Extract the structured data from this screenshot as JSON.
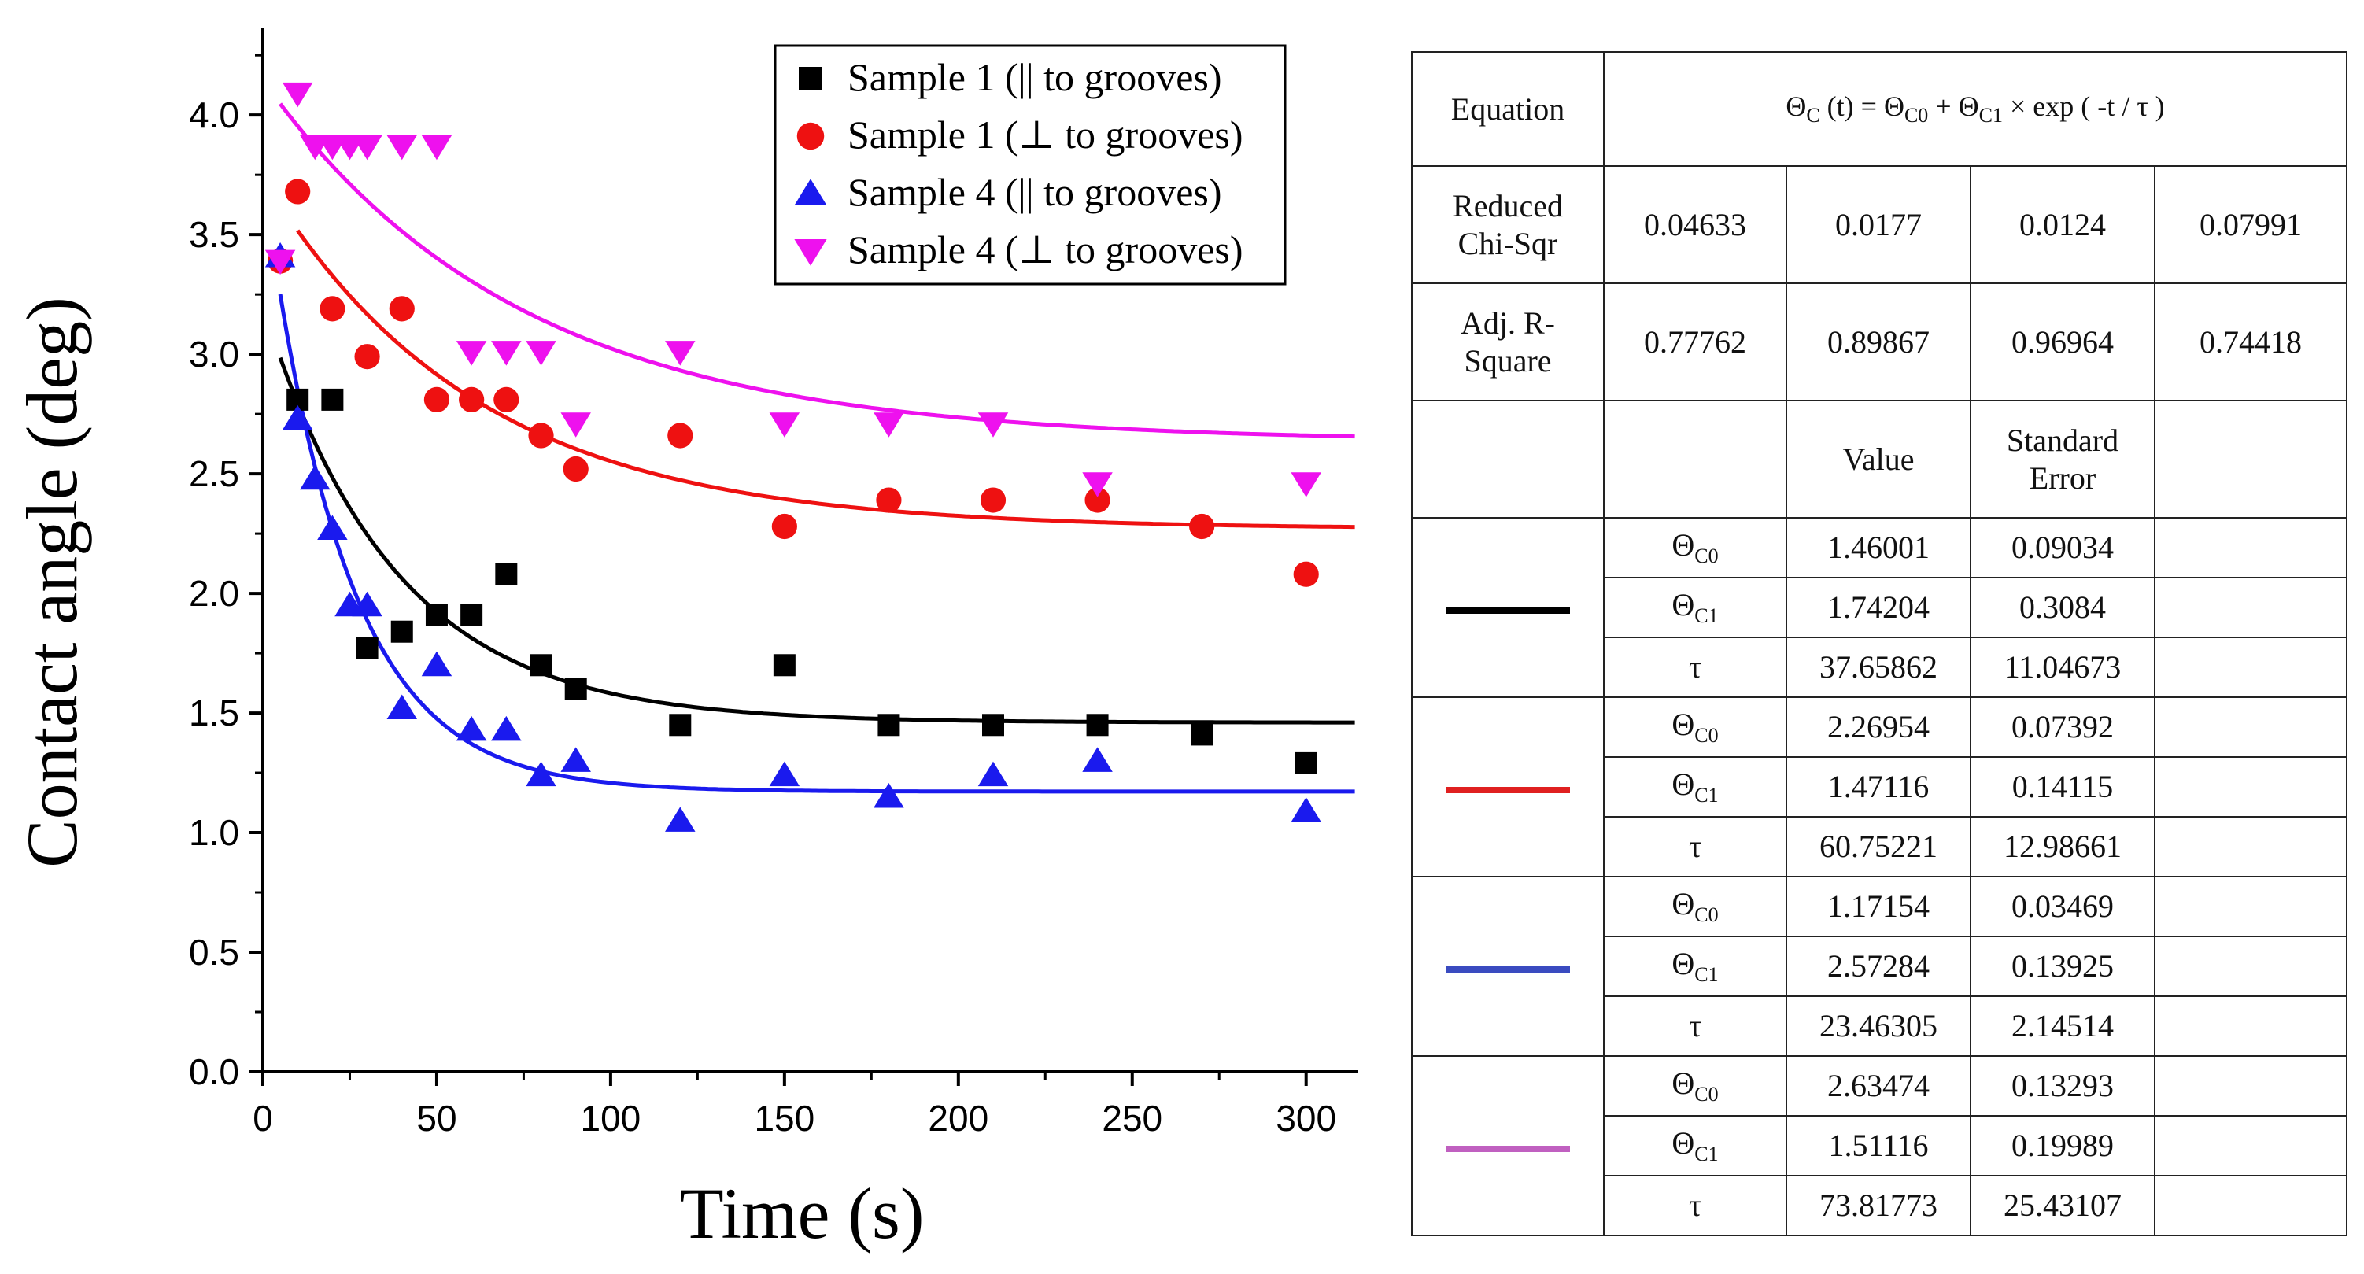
{
  "chart_data": {
    "type": "scatter",
    "xlabel": "Time (s)",
    "ylabel": "Contact angle (deg)",
    "xlim": [
      0,
      315
    ],
    "ylim": [
      0,
      4.3
    ],
    "xticks": [
      0,
      50,
      100,
      150,
      200,
      250,
      300
    ],
    "xtick_labels": [
      "0",
      "50",
      "100",
      "150",
      "200",
      "250",
      "300"
    ],
    "yticks": [
      0,
      0.5,
      1.0,
      1.5,
      2.0,
      2.5,
      3.0,
      3.5,
      4.0
    ],
    "ytick_labels": [
      "0.0",
      "0.5",
      "1.0",
      "1.5",
      "2.0",
      "2.5",
      "3.0",
      "3.5",
      "4.0"
    ],
    "legend_position": "top-right",
    "series": [
      {
        "name": "Sample 1 (|| to grooves)",
        "marker": "square",
        "color": "#000000",
        "x": [
          10,
          20,
          30,
          40,
          50,
          60,
          70,
          80,
          90,
          120,
          150,
          180,
          210,
          240,
          270,
          300
        ],
        "y": [
          2.81,
          2.81,
          1.77,
          1.84,
          1.91,
          1.91,
          2.08,
          1.7,
          1.6,
          1.45,
          1.7,
          1.45,
          1.45,
          1.45,
          1.41,
          1.29
        ],
        "fit": {
          "c0": 1.46001,
          "c1": 1.74204,
          "tau": 37.65862,
          "t0": 5
        }
      },
      {
        "name": "Sample 1 (⊥ to grooves)",
        "marker": "circle",
        "color": "#ee1111",
        "x": [
          5,
          10,
          20,
          30,
          40,
          50,
          60,
          70,
          80,
          90,
          120,
          150,
          180,
          210,
          240,
          270,
          300
        ],
        "y": [
          3.39,
          3.68,
          3.19,
          2.99,
          3.19,
          2.81,
          2.81,
          2.81,
          2.66,
          2.52,
          2.66,
          2.28,
          2.39,
          2.39,
          2.39,
          2.28,
          2.08
        ],
        "fit": {
          "c0": 2.26954,
          "c1": 1.47116,
          "tau": 60.75221,
          "t0": 10
        }
      },
      {
        "name": "Sample 4 (|| to grooves)",
        "marker": "triangle-up",
        "color": "#1a1aee",
        "x": [
          5,
          10,
          15,
          20,
          25,
          30,
          40,
          50,
          60,
          70,
          80,
          90,
          120,
          150,
          180,
          210,
          240,
          300
        ],
        "y": [
          3.41,
          2.73,
          2.48,
          2.27,
          1.95,
          1.95,
          1.52,
          1.7,
          1.43,
          1.43,
          1.24,
          1.3,
          1.05,
          1.24,
          1.15,
          1.24,
          1.3,
          1.09
        ],
        "fit": {
          "c0": 1.17154,
          "c1": 2.57284,
          "tau": 23.46305,
          "t0": 5
        }
      },
      {
        "name": "Sample 4 (⊥ to grooves)",
        "marker": "triangle-down",
        "color": "#ee11ee",
        "x": [
          5,
          10,
          15,
          20,
          25,
          30,
          40,
          50,
          60,
          70,
          80,
          90,
          120,
          150,
          180,
          210,
          240,
          300
        ],
        "y": [
          3.39,
          4.09,
          3.87,
          3.87,
          3.87,
          3.87,
          3.87,
          3.87,
          3.01,
          3.01,
          3.01,
          2.71,
          3.01,
          2.71,
          2.71,
          2.71,
          2.46,
          2.46
        ],
        "fit": {
          "c0": 2.63474,
          "c1": 1.51116,
          "tau": 73.81773,
          "t0": 5
        }
      }
    ]
  },
  "table": {
    "equation_label": "Equation",
    "equation_text": "Θ_C (t) = Θ_C0 + Θ_C1 × exp ( -t / τ )",
    "reduced_chi_label_1": "Reduced",
    "reduced_chi_label_2": "Chi-Sqr",
    "reduced_chi": [
      "0.04633",
      "0.0177",
      "0.0124",
      "0.07991"
    ],
    "adj_r_label_1": "Adj. R-",
    "adj_r_label_2": "Square",
    "adj_r": [
      "0.77762",
      "0.89867",
      "0.96964",
      "0.74418"
    ],
    "value_header": "Value",
    "stderr_header_1": "Standard",
    "stderr_header_2": "Error",
    "theta_symbol": "Θ",
    "c0_sub": "C0",
    "c1_sub": "C1",
    "tau_symbol": "τ",
    "swatch_colors": [
      "#000000",
      "#e02020",
      "#3a4bc0",
      "#c060c0"
    ],
    "fits": [
      {
        "c0": "1.46001",
        "c0_err": "0.09034",
        "c1": "1.74204",
        "c1_err": "0.3084",
        "tau": "37.65862",
        "tau_err": "11.04673"
      },
      {
        "c0": "2.26954",
        "c0_err": "0.07392",
        "c1": "1.47116",
        "c1_err": "0.14115",
        "tau": "60.75221",
        "tau_err": "12.98661"
      },
      {
        "c0": "1.17154",
        "c0_err": "0.03469",
        "c1": "2.57284",
        "c1_err": "0.13925",
        "tau": "23.46305",
        "tau_err": "2.14514"
      },
      {
        "c0": "2.63474",
        "c0_err": "0.13293",
        "c1": "1.51116",
        "c1_err": "0.19989",
        "tau": "73.81773",
        "tau_err": "25.43107"
      }
    ]
  }
}
